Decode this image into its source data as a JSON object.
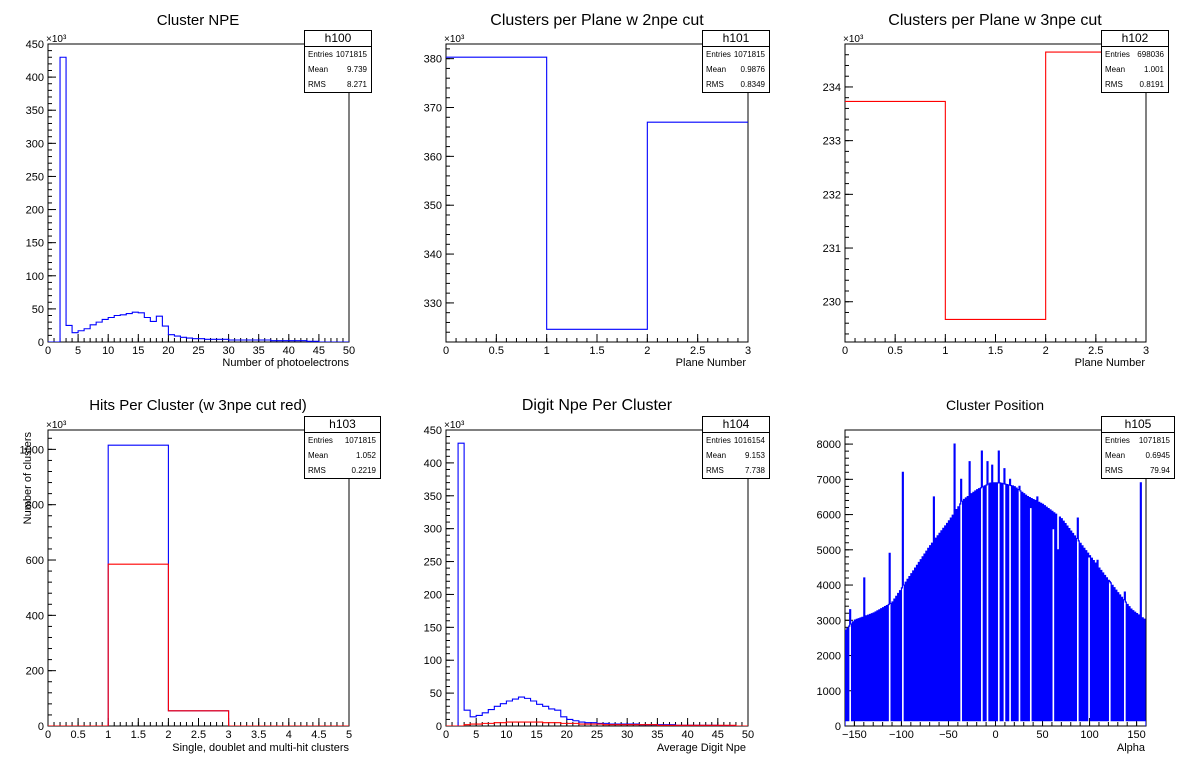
{
  "chart_data": [
    {
      "id": "h100",
      "type": "histogram",
      "title": "Cluster NPE",
      "xlabel": "Number of photoelectrons",
      "ylabel": "",
      "exponent": "×10³",
      "xlim": [
        0,
        50
      ],
      "ylim": [
        0,
        450
      ],
      "xticks": [
        0,
        5,
        10,
        15,
        20,
        25,
        30,
        35,
        40,
        45,
        50
      ],
      "xtick_labels": [
        "0",
        "5",
        "10",
        "15",
        "20",
        "25",
        "30",
        "35",
        "40",
        "45",
        "50"
      ],
      "yticks": [
        0,
        50,
        100,
        150,
        200,
        250,
        300,
        350,
        400,
        450
      ],
      "ytick_labels": [
        "0",
        "50",
        "100",
        "150",
        "200",
        "250",
        "300",
        "350",
        "400",
        "450"
      ],
      "stats": {
        "name": "h100",
        "entries_label": "Entries",
        "entries": "1071815",
        "mean_label": "Mean",
        "mean": "9.739",
        "rms_label": "RMS",
        "rms": "8.271"
      },
      "series": [
        {
          "color": "#0000ff",
          "bin_width": 1,
          "x0": 0,
          "values": [
            0,
            0,
            430,
            25,
            14,
            17,
            20,
            26,
            30,
            34,
            37,
            40,
            41,
            43,
            45,
            44,
            37,
            31,
            39,
            24,
            11,
            9,
            7,
            6,
            5,
            5,
            4,
            4,
            4,
            4,
            3,
            3,
            3,
            3,
            3,
            3,
            3,
            2,
            2,
            2,
            2,
            2,
            2,
            1,
            1,
            0,
            0,
            0,
            0,
            0
          ]
        }
      ]
    },
    {
      "id": "h101",
      "type": "histogram",
      "title": "Clusters per Plane w 2npe cut",
      "xlabel": "Plane Number",
      "ylabel": "",
      "exponent": "×10³",
      "xlim": [
        0,
        3
      ],
      "ylim": [
        322,
        383
      ],
      "xticks": [
        0,
        0.5,
        1,
        1.5,
        2,
        2.5,
        3
      ],
      "xtick_labels": [
        "0",
        "0.5",
        "1",
        "1.5",
        "2",
        "2.5",
        "3"
      ],
      "yticks": [
        330,
        340,
        350,
        360,
        370,
        380
      ],
      "ytick_labels": [
        "330",
        "340",
        "350",
        "360",
        "370",
        "380"
      ],
      "stats": {
        "name": "h101",
        "entries_label": "Entries",
        "entries": "1071815",
        "mean_label": "Mean",
        "mean": "0.9876",
        "rms_label": "RMS",
        "rms": "0.8349"
      },
      "series": [
        {
          "color": "#0000ff",
          "bin_width": 1,
          "x0": 0,
          "values": [
            380.3,
            324.6,
            367.0
          ]
        }
      ]
    },
    {
      "id": "h102",
      "type": "histogram",
      "title": "Clusters per Plane w 3npe cut",
      "xlabel": "Plane Number",
      "ylabel": "",
      "exponent": "×10³",
      "xlim": [
        0,
        3
      ],
      "ylim": [
        229.25,
        234.8
      ],
      "xticks": [
        0,
        0.5,
        1,
        1.5,
        2,
        2.5,
        3
      ],
      "xtick_labels": [
        "0",
        "0.5",
        "1",
        "1.5",
        "2",
        "2.5",
        "3"
      ],
      "yticks": [
        230,
        231,
        232,
        233,
        234
      ],
      "ytick_labels": [
        "230",
        "231",
        "232",
        "233",
        "234"
      ],
      "stats": {
        "name": "h102",
        "entries_label": "Entries",
        "entries": "698036",
        "mean_label": "Mean",
        "mean": "1.001",
        "rms_label": "RMS",
        "rms": "0.8191"
      },
      "series": [
        {
          "color": "#ff0000",
          "bin_width": 1,
          "x0": 0,
          "values": [
            233.73,
            229.67,
            234.65
          ]
        }
      ]
    },
    {
      "id": "h103",
      "type": "histogram",
      "title": "Hits Per Cluster (w 3npe cut red)",
      "xlabel": "Single, doublet and multi-hit clusters",
      "ylabel": "Number of clusters",
      "exponent": "×10³",
      "xlim": [
        0,
        5
      ],
      "ylim": [
        0,
        1070
      ],
      "xticks": [
        0,
        0.5,
        1,
        1.5,
        2,
        2.5,
        3,
        3.5,
        4,
        4.5,
        5
      ],
      "xtick_labels": [
        "0",
        "0.5",
        "1",
        "1.5",
        "2",
        "2.5",
        "3",
        "3.5",
        "4",
        "4.5",
        "5"
      ],
      "yticks": [
        0,
        200,
        400,
        600,
        800,
        1000
      ],
      "ytick_labels": [
        "0",
        "200",
        "400",
        "600",
        "800",
        "1000"
      ],
      "stats": {
        "name": "h103",
        "entries_label": "Entries",
        "entries": "1071815",
        "mean_label": "Mean",
        "mean": "1.052",
        "rms_label": "RMS",
        "rms": "0.2219"
      },
      "series": [
        {
          "color": "#0000ff",
          "bin_width": 1,
          "x0": 0,
          "values": [
            0,
            1015,
            55,
            0,
            0
          ]
        },
        {
          "color": "#ff0000",
          "bin_width": 1,
          "x0": 0,
          "values": [
            0,
            585,
            55,
            0,
            0
          ]
        }
      ]
    },
    {
      "id": "h104",
      "type": "histogram",
      "title": "Digit Npe Per Cluster",
      "xlabel": "Average Digit Npe",
      "ylabel": "",
      "exponent": "×10³",
      "xlim": [
        0,
        50
      ],
      "ylim": [
        0,
        450
      ],
      "xticks": [
        0,
        5,
        10,
        15,
        20,
        25,
        30,
        35,
        40,
        45,
        50
      ],
      "xtick_labels": [
        "0",
        "5",
        "10",
        "15",
        "20",
        "25",
        "30",
        "35",
        "40",
        "45",
        "50"
      ],
      "yticks": [
        0,
        50,
        100,
        150,
        200,
        250,
        300,
        350,
        400,
        450
      ],
      "ytick_labels": [
        "0",
        "50",
        "100",
        "150",
        "200",
        "250",
        "300",
        "350",
        "400",
        "450"
      ],
      "stats": {
        "name": "h104",
        "entries_label": "Entries",
        "entries": "1016154",
        "mean_label": "Mean",
        "mean": "9.153",
        "rms_label": "RMS",
        "rms": "7.738"
      },
      "series": [
        {
          "color": "#0000ff",
          "bin_width": 1,
          "x0": 0,
          "values": [
            0,
            0,
            430,
            24,
            14,
            16,
            20,
            25,
            30,
            34,
            38,
            41,
            44,
            42,
            38,
            33,
            30,
            26,
            24,
            14,
            10,
            8,
            6,
            5,
            5,
            4,
            4,
            3,
            3,
            3,
            3,
            3,
            2,
            2,
            2,
            2,
            2,
            2,
            1,
            1,
            1,
            1,
            1,
            1,
            1,
            0,
            0,
            0,
            0,
            0
          ]
        },
        {
          "color": "#ff0000",
          "bin_width": 1,
          "x0": 0,
          "values": [
            0,
            0,
            0,
            2,
            3,
            3,
            4,
            4,
            5,
            5,
            6,
            6,
            6,
            6,
            6,
            6,
            5,
            5,
            5,
            4,
            4,
            4,
            3,
            3,
            3,
            3,
            2,
            2,
            2,
            2,
            2,
            2,
            2,
            2,
            2,
            1,
            1,
            1,
            1,
            1,
            1,
            1,
            1,
            1,
            1,
            1,
            1,
            1,
            0,
            0
          ]
        }
      ]
    },
    {
      "id": "h105",
      "type": "histogram",
      "title": "Cluster Position",
      "xlabel": "Alpha",
      "ylabel": "",
      "exponent": "",
      "xlim": [
        -160,
        160
      ],
      "ylim": [
        0,
        8400
      ],
      "xticks": [
        -150,
        -100,
        -50,
        0,
        50,
        100,
        150
      ],
      "xtick_labels": [
        "−150",
        "−100",
        "−50",
        "0",
        "50",
        "100",
        "150"
      ],
      "yticks": [
        0,
        1000,
        2000,
        3000,
        4000,
        5000,
        6000,
        7000,
        8000
      ],
      "ytick_labels": [
        "0",
        "1000",
        "2000",
        "3000",
        "4000",
        "5000",
        "6000",
        "7000",
        "8000"
      ],
      "stats": {
        "name": "h105",
        "entries_label": "Entries",
        "entries": "1071815",
        "mean_label": "Mean",
        "mean": "0.6945",
        "rms_label": "RMS",
        "rms": "79.94"
      },
      "series": [
        {
          "color": "#0000ff",
          "bin_width": 1,
          "x0": -160,
          "comb": true,
          "comb_period": 2,
          "comb_floor": 150,
          "envelope": [
            [
              -160,
              2700
            ],
            [
              -150,
              3000
            ],
            [
              -130,
              3200
            ],
            [
              -110,
              3500
            ],
            [
              -90,
              4300
            ],
            [
              -70,
              5100
            ],
            [
              -50,
              5800
            ],
            [
              -35,
              6400
            ],
            [
              -20,
              6700
            ],
            [
              -5,
              6900
            ],
            [
              5,
              6900
            ],
            [
              20,
              6800
            ],
            [
              35,
              6500
            ],
            [
              50,
              6300
            ],
            [
              70,
              5900
            ],
            [
              90,
              5200
            ],
            [
              110,
              4500
            ],
            [
              130,
              3800
            ],
            [
              145,
              3300
            ],
            [
              160,
              3000
            ]
          ],
          "spikes": [
            [
              -155,
              3300
            ],
            [
              -140,
              4200
            ],
            [
              -113,
              4900
            ],
            [
              -99,
              7200
            ],
            [
              -66,
              6500
            ],
            [
              -44,
              8000
            ],
            [
              -37,
              7000
            ],
            [
              -28,
              7500
            ],
            [
              -15,
              7800
            ],
            [
              -9,
              7500
            ],
            [
              -4,
              7400
            ],
            [
              3,
              7800
            ],
            [
              9,
              7300
            ],
            [
              15,
              7000
            ],
            [
              25,
              6800
            ],
            [
              37,
              6200
            ],
            [
              44,
              6500
            ],
            [
              61,
              5600
            ],
            [
              66,
              5000
            ],
            [
              87,
              5900
            ],
            [
              99,
              4800
            ],
            [
              108,
              4700
            ],
            [
              121,
              4100
            ],
            [
              137,
              3800
            ],
            [
              154,
              6900
            ]
          ]
        }
      ]
    }
  ]
}
